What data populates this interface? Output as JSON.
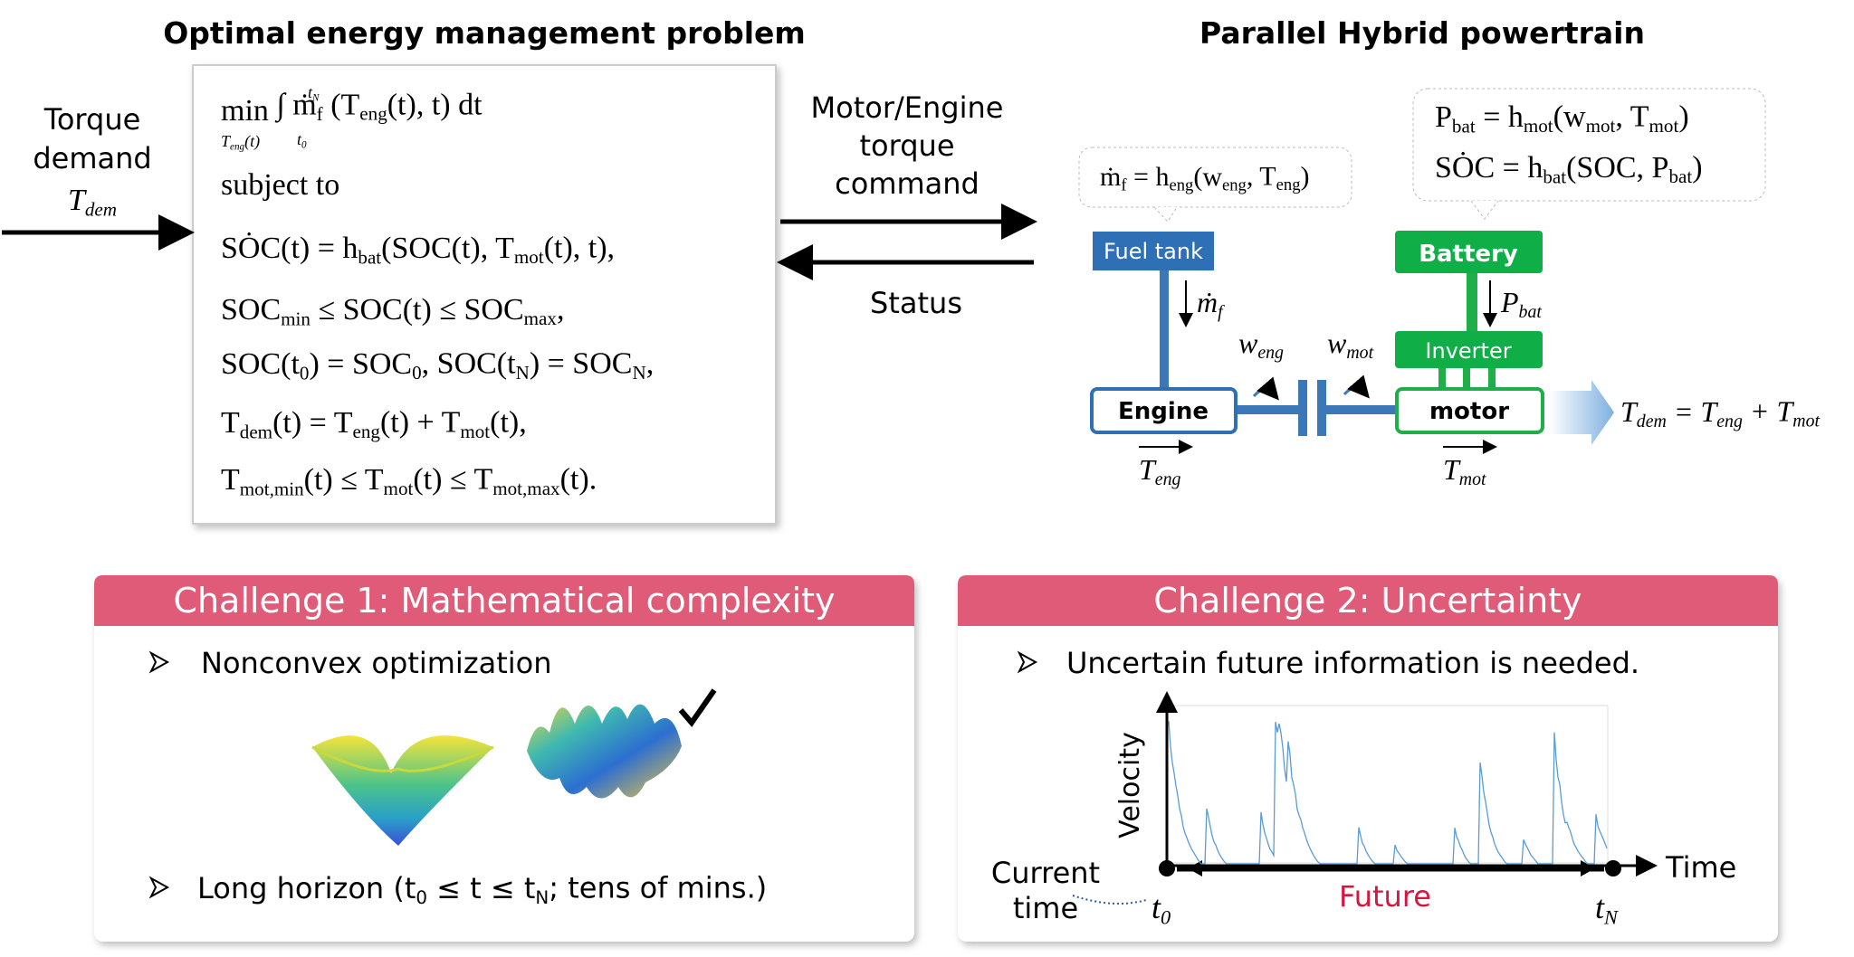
{
  "problem": {
    "title": "Optimal energy management problem",
    "input": [
      "Torque",
      "demand"
    ],
    "input_symbol": [
      "T",
      "dem"
    ],
    "min_under": [
      "T",
      "eng",
      "(t)"
    ],
    "int_upper": [
      "t",
      "N"
    ],
    "int_lower": [
      "t",
      "0"
    ],
    "formulas": [
      [
        "min",
        "",
        "    ∫ ṁ",
        "f",
        " (T",
        "eng",
        "(t), t) dt"
      ],
      [
        "subject to"
      ],
      [
        "SȮC(t) = h",
        "bat",
        "(SOC(t), T",
        "mot",
        "(t), t),"
      ],
      [
        "SOC",
        "min",
        " ≤ SOC(t) ≤ SOC",
        "max",
        ","
      ],
      [
        "SOC(t",
        "0",
        ") = SOC",
        "0",
        ", SOC(t",
        "N",
        ") = SOC",
        "N",
        ","
      ],
      [
        "T",
        "dem",
        "(t) = T",
        "eng",
        "(t) + T",
        "mot",
        "(t),"
      ],
      [
        "T",
        "mot,min",
        "(t) ≤ T",
        "mot",
        "(t) ≤ T",
        "mot,max",
        "(t)."
      ]
    ]
  },
  "link": {
    "command": [
      "Motor/Engine",
      "torque",
      "command"
    ],
    "status": "Status"
  },
  "powertrain": {
    "title": "Parallel Hybrid powertrain",
    "engine_model": [
      "ṁ",
      "f",
      " = h",
      "eng",
      "(w",
      "eng",
      ", T",
      "eng",
      ")"
    ],
    "battery_model": [
      [
        "P",
        "bat",
        " = h",
        "mot",
        "(w",
        "mot",
        ", T",
        "mot",
        ")"
      ],
      [
        "SȮC = h",
        "bat",
        "(SOC, P",
        "bat",
        ")"
      ]
    ],
    "fuel_tank": "Fuel tank",
    "battery": "Battery",
    "inverter": "Inverter",
    "engine": "Engine",
    "motor": "motor",
    "fuel_flow": [
      "ṁ",
      "f"
    ],
    "battery_power": [
      "P",
      "bat"
    ],
    "engine_speed": [
      "w",
      "eng"
    ],
    "motor_speed": [
      "w",
      "mot"
    ],
    "engine_torque": [
      "T",
      "eng"
    ],
    "motor_torque": [
      "T",
      "mot"
    ],
    "output": [
      "T",
      "dem",
      " = T",
      "eng",
      " + T",
      "mot"
    ]
  },
  "challenge1": {
    "title": "Challenge 1: Mathematical complexity",
    "bullets": [
      [
        "Nonconvex optimization"
      ],
      [
        "Long horizon (t",
        "0",
        " ≤ t ≤ t",
        "N",
        "; tens of mins.)"
      ]
    ]
  },
  "challenge2": {
    "title": "Challenge 2: Uncertainty",
    "bullet": "Uncertain future information is needed.",
    "y_label": "Velocity",
    "x_label": "Time",
    "current": [
      "Current",
      "time"
    ],
    "t_start": [
      "t",
      "0"
    ],
    "t_end": [
      "t",
      "N"
    ],
    "future": "Future"
  }
}
